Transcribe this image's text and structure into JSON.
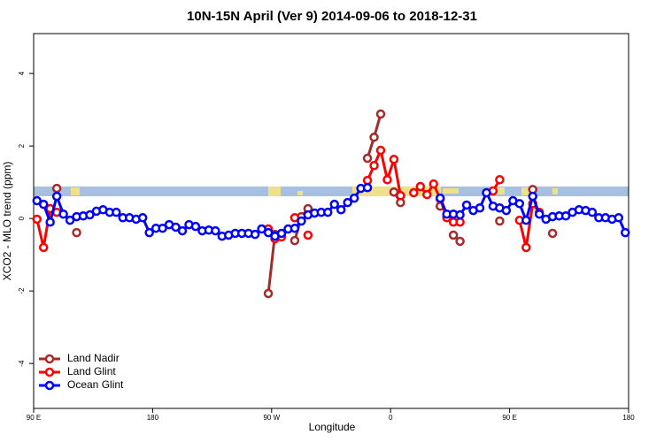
{
  "chart_data": {
    "type": "line",
    "title": "10N-15N April (Ver 9)   2014-09-06 to 2018-12-31",
    "x_label": "Longitude",
    "y_label": "XCO2 - MLO trend (ppm)",
    "x": [
      92.5,
      97.5,
      102.5,
      107.5,
      112.5,
      117.5,
      122.5,
      127.5,
      132.5,
      137.5,
      142.5,
      147.5,
      152.5,
      157.5,
      162.5,
      167.5,
      172.5,
      177.5,
      182.5,
      187.5,
      192.5,
      197.5,
      202.5,
      207.5,
      212.5,
      217.5,
      222.5,
      227.5,
      232.5,
      237.5,
      242.5,
      247.5,
      252.5,
      257.5,
      262.5,
      267.5,
      272.5,
      277.5,
      282.5,
      287.5,
      292.5,
      297.5,
      302.5,
      307.5,
      312.5,
      317.5,
      322.5,
      327.5,
      332.5,
      337.5,
      342.5,
      347.5,
      352.5,
      357.5,
      362.5,
      367.5,
      372.5,
      377.5,
      382.5,
      387.5,
      392.5,
      397.5,
      402.5,
      407.5,
      412.5,
      417.5,
      422.5,
      427.5,
      432.5,
      437.5,
      442.5,
      447.5,
      452.5,
      457.5,
      462.5,
      467.5,
      472.5,
      477.5,
      482.5,
      487.5,
      492.5,
      497.5,
      502.5,
      507.5,
      512.5,
      517.5,
      522.5,
      527.5,
      532.5,
      537.5
    ],
    "series": [
      {
        "name": "Land Nadir",
        "color": "#a52a2a",
        "values": [
          null,
          null,
          null,
          0.83,
          null,
          null,
          -0.39,
          null,
          null,
          null,
          null,
          null,
          null,
          null,
          null,
          null,
          null,
          null,
          null,
          null,
          null,
          null,
          null,
          null,
          null,
          null,
          null,
          null,
          null,
          null,
          null,
          null,
          null,
          null,
          null,
          -2.07,
          -0.44,
          null,
          null,
          -0.61,
          0.05,
          0.27,
          null,
          null,
          null,
          null,
          null,
          null,
          null,
          null,
          1.66,
          2.24,
          2.88,
          null,
          0.73,
          0.44,
          null,
          null,
          null,
          null,
          null,
          0.34,
          null,
          -0.46,
          -0.63,
          null,
          null,
          null,
          null,
          null,
          -0.07,
          null,
          null,
          null,
          null,
          0.8,
          null,
          null,
          -0.41,
          null,
          null,
          null,
          null,
          null,
          null,
          null,
          null,
          null,
          null,
          null
        ]
      },
      {
        "name": "Land Glint",
        "color": "#ff0000",
        "values": [
          -0.02,
          -0.8,
          0.27,
          0.17,
          null,
          null,
          null,
          null,
          null,
          null,
          null,
          null,
          null,
          null,
          null,
          null,
          null,
          null,
          null,
          null,
          null,
          null,
          null,
          null,
          null,
          null,
          null,
          null,
          null,
          null,
          null,
          null,
          null,
          null,
          null,
          -0.29,
          -0.56,
          -0.51,
          null,
          0.02,
          null,
          -0.46,
          null,
          null,
          null,
          null,
          null,
          null,
          null,
          null,
          1.05,
          1.46,
          1.88,
          1.07,
          1.63,
          0.63,
          null,
          0.71,
          0.88,
          0.66,
          0.95,
          0.54,
          0.02,
          -0.1,
          -0.1,
          null,
          null,
          null,
          null,
          0.76,
          1.07,
          null,
          null,
          -0.05,
          -0.8,
          0.41,
          0.17,
          null,
          null,
          null,
          null,
          null,
          null,
          null,
          null,
          null,
          null,
          null,
          null,
          null
        ]
      },
      {
        "name": "Ocean Glint",
        "color": "#0000ff",
        "values": [
          0.49,
          0.39,
          -0.1,
          0.61,
          0.12,
          -0.05,
          0.05,
          0.07,
          0.1,
          0.2,
          0.24,
          0.17,
          0.17,
          0.02,
          0.02,
          -0.02,
          0.02,
          -0.39,
          -0.27,
          -0.27,
          -0.17,
          -0.24,
          -0.34,
          -0.17,
          -0.22,
          -0.34,
          -0.32,
          -0.34,
          -0.49,
          -0.46,
          -0.41,
          -0.41,
          -0.41,
          -0.44,
          -0.29,
          -0.39,
          -0.49,
          -0.41,
          -0.29,
          -0.27,
          -0.07,
          0.1,
          0.15,
          0.17,
          0.17,
          0.39,
          0.24,
          0.44,
          0.56,
          0.83,
          0.85,
          null,
          null,
          null,
          null,
          null,
          null,
          null,
          null,
          null,
          null,
          0.56,
          0.12,
          0.12,
          0.1,
          0.37,
          0.22,
          0.29,
          0.71,
          0.34,
          0.29,
          0.22,
          0.49,
          0.41,
          -0.05,
          0.61,
          0.12,
          -0.02,
          0.05,
          0.07,
          0.07,
          0.17,
          0.24,
          0.22,
          0.17,
          0.02,
          0.02,
          -0.02,
          0.02,
          -0.39
        ]
      }
    ],
    "xlim": [
      90,
      540
    ],
    "xticks": [
      {
        "value": 90,
        "label": "90 E"
      },
      180,
      {
        "value": 270,
        "label": "90 W"
      },
      {
        "value": 360,
        "label": "0"
      },
      {
        "value": 450,
        "label": "90 E"
      },
      {
        "value": 540,
        "label": "180"
      }
    ],
    "ylim": [
      -5.24,
      5.1
    ],
    "yticks": [
      -4,
      -2,
      0,
      2,
      4
    ],
    "legend": "bottom-left"
  }
}
